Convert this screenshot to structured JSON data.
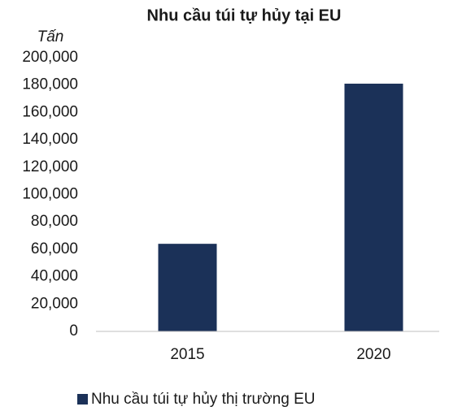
{
  "chart_data": {
    "type": "bar",
    "title": "Nhu cầu túi tự hủy tại EU",
    "y_label": "Tấn",
    "categories": [
      "2015",
      "2020"
    ],
    "series": [
      {
        "name": "Nhu cầu túi tự hủy thị trường EU",
        "color": "#1b3158",
        "values": [
          64000,
          181000
        ]
      }
    ],
    "ylim": [
      0,
      200000
    ],
    "yticks": [
      0,
      {
        "value": 20000,
        "label": "20,000"
      },
      {
        "value": 40000,
        "label": "40,000"
      },
      {
        "value": 60000,
        "label": "60,000"
      },
      {
        "value": 80000,
        "label": "80,000"
      },
      {
        "value": 100000,
        "label": "100,000"
      },
      {
        "value": 120000,
        "label": "120,000"
      },
      {
        "value": 140000,
        "label": "140,000"
      },
      {
        "value": 160000,
        "label": "160,000"
      },
      {
        "value": 180000,
        "label": "180,000"
      },
      {
        "value": 200000,
        "label": "200,000"
      }
    ],
    "grid": false,
    "legend": "bottom"
  }
}
